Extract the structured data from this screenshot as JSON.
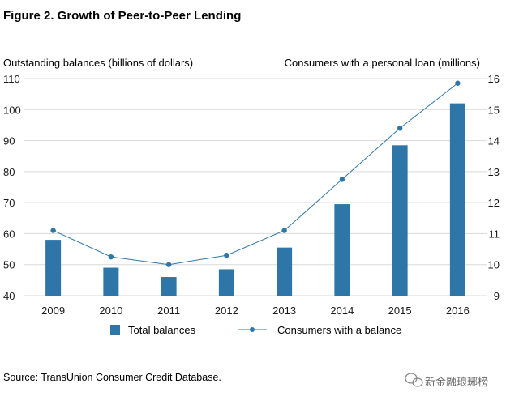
{
  "chart_data": {
    "type": "bar",
    "title": "Figure 2. Growth of Peer-to-Peer Lending",
    "ylabel_left": "Outstanding balances (billions of dollars)",
    "ylabel_right": "Consumers with a personal loan (millions)",
    "categories": [
      "2009",
      "2010",
      "2011",
      "2012",
      "2013",
      "2014",
      "2015",
      "2016"
    ],
    "ylim_left": [
      40,
      110
    ],
    "yticks_left": [
      "40",
      "50",
      "60",
      "70",
      "80",
      "90",
      "100",
      "110"
    ],
    "ylim_right": [
      9,
      16
    ],
    "yticks_right": [
      "9",
      "10",
      "11",
      "12",
      "13",
      "14",
      "15",
      "16"
    ],
    "grid": true,
    "legend_placement": "bottom",
    "series": [
      {
        "name": "Total balances",
        "type": "bar",
        "axis": "left",
        "color": "#2f76a8",
        "values": [
          58,
          49,
          46,
          48.5,
          55.5,
          69.5,
          88.5,
          102
        ]
      },
      {
        "name": "Consumers with a balance",
        "type": "line",
        "axis": "right",
        "color": "#2f76a8",
        "values": [
          11.1,
          10.25,
          10.0,
          10.3,
          11.1,
          12.75,
          14.4,
          15.85
        ]
      }
    ],
    "source": "Source: TransUnion Consumer Credit Database.",
    "watermark": "新金融琅琊榜"
  }
}
